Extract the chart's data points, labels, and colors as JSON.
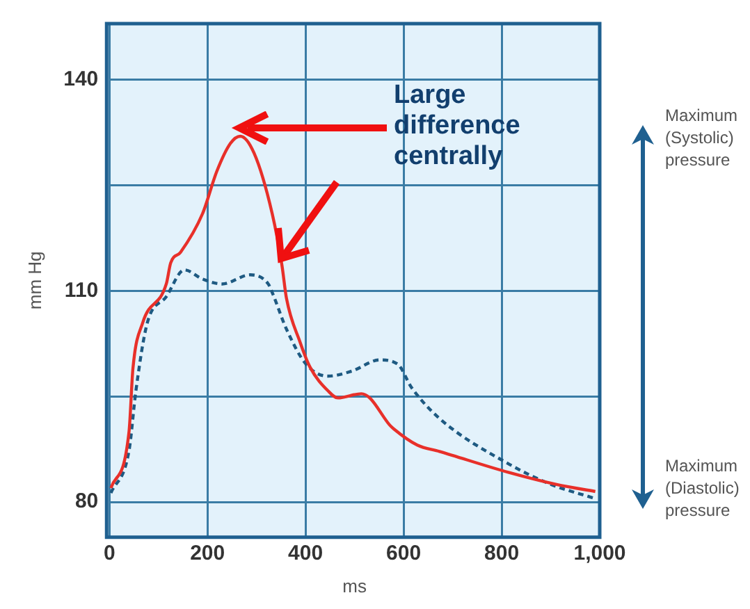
{
  "chart_data": {
    "type": "line",
    "xlabel": "ms",
    "ylabel": "mm Hg",
    "annotations": [
      "Large difference centrally",
      "Maximum (Systolic) pressure",
      "Maximum (Diastolic) pressure"
    ],
    "xlim": [
      0,
      1000
    ],
    "xticks": [
      0,
      200,
      400,
      600,
      800,
      {
        "value": 1000,
        "label": "1,000"
      }
    ],
    "ylim": [
      75,
      148
    ],
    "yticks": [
      80,
      {
        "value": 95,
        "label": null
      },
      110,
      {
        "value": 125,
        "label": null
      },
      140
    ],
    "grid": true,
    "legend": false,
    "marker": "none",
    "series": [
      {
        "color": "#e8302a",
        "line_style": "solid",
        "x": [
          3,
          40,
          48,
          68,
          116,
          125,
          145,
          190,
          219,
          247,
          267,
          295,
          332,
          352,
          361,
          389,
          409,
          446,
          466,
          514,
          531,
          571,
          580,
          628,
          673,
          815,
          912,
          991
        ],
        "values": [
          82,
          90,
          99,
          105.5,
          111,
          114,
          115.5,
          121,
          127,
          131,
          132,
          129.6,
          121,
          113.6,
          109,
          102.7,
          99.2,
          95.8,
          94.8,
          95.4,
          94.8,
          91,
          90.4,
          88.1,
          87.2,
          84.2,
          82.5,
          81.5
        ]
      },
      {
        "color": "#1e5a82",
        "line_style": "dashed",
        "x": [
          3,
          40,
          54,
          77,
          116,
          153,
          190,
          230,
          287,
          324,
          332,
          361,
          401,
          446,
          494,
          551,
          588,
          616,
          673,
          815,
          901,
          986
        ],
        "values": [
          81.3,
          87.3,
          95.8,
          105.4,
          109.2,
          113,
          111.7,
          111,
          112.3,
          111,
          109.8,
          104.6,
          99.6,
          97.9,
          98.6,
          100.2,
          99.6,
          96.3,
          91.9,
          85.4,
          82.5,
          80.6
        ]
      }
    ]
  }
}
